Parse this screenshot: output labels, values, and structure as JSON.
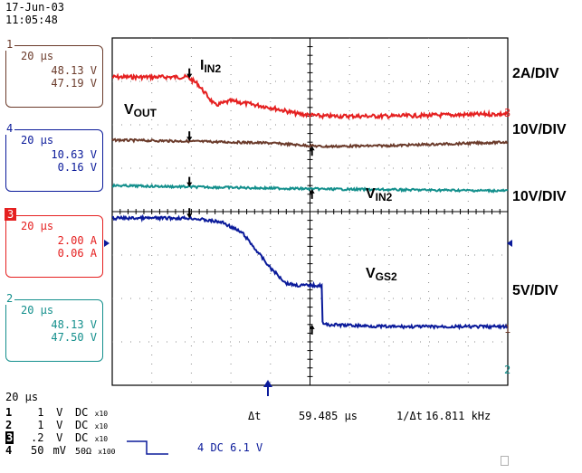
{
  "header": {
    "date": "17-Jun-03",
    "time": "11:05:48"
  },
  "colors": {
    "ch1": "#6b3b2b",
    "ch4": "#0a1a9a",
    "ch3": "#e52020",
    "ch2": "#138f8c",
    "grid": "#000000"
  },
  "channels": [
    {
      "id": "ch1",
      "number": "1",
      "time_div": "20 μs",
      "max": "48.13 V",
      "min": "47.19 V"
    },
    {
      "id": "ch4",
      "number": "4",
      "time_div": "20 μs",
      "max": "10.63 V",
      "min": "0.16 V"
    },
    {
      "id": "ch3",
      "number": "3",
      "time_div": "20 μs",
      "max": "2.00 A",
      "min": "0.06 A"
    },
    {
      "id": "ch2",
      "number": "2",
      "time_div": "20 μs",
      "max": "48.13 V",
      "min": "47.50 V"
    }
  ],
  "timebase": "20 μs",
  "settings": [
    {
      "ch": "1",
      "scale": "1",
      "unit": "V",
      "coupling": "DC",
      "probe": "x10"
    },
    {
      "ch": "2",
      "scale": "1",
      "unit": "V",
      "coupling": "DC",
      "probe": "x10"
    },
    {
      "ch": "3",
      "scale": ".2",
      "unit": "V",
      "coupling": "DC",
      "probe": "x10"
    },
    {
      "ch": "4",
      "scale": "50",
      "unit": "mV",
      "coupling": "50Ω",
      "probe": "x100"
    }
  ],
  "trigger": "4 DC 6.1 V",
  "measure": {
    "delta_label": "Δt",
    "delta_value": "59.485 μs",
    "freq_symbol": "1/Δt",
    "freq_value": "16.811 kHz"
  },
  "annotations": {
    "iin2": "I",
    "iin2_sub": "IN2",
    "vout": "V",
    "vout_sub": "OUT",
    "vin2": "V",
    "vin2_sub": "IN2",
    "vgs2": "V",
    "vgs2_sub": "GS2"
  },
  "divs": {
    "d1": "2A/DIV",
    "d2": "10V/DIV",
    "d3": "10V/DIV",
    "d4": "5V/DIV"
  },
  "chart_data": {
    "type": "line",
    "xlabel": "",
    "ylabel": "",
    "x_divisions": 10,
    "y_divisions": 8,
    "series": [
      {
        "x": [
          0,
          1.9,
          2.15,
          2.6,
          3,
          4,
          4.7,
          5.3,
          7,
          10
        ],
        "y": [
          7.1,
          7.1,
          6.95,
          6.45,
          6.55,
          6.4,
          6.25,
          6.2,
          6.2,
          6.25
        ]
      },
      {
        "x": [
          0,
          2,
          4,
          5.3,
          7,
          10
        ],
        "y": [
          5.65,
          5.62,
          5.58,
          5.5,
          5.52,
          5.6
        ]
      },
      {
        "x": [
          0,
          2,
          5.3,
          10
        ],
        "y": [
          4.6,
          4.57,
          4.52,
          4.48
        ]
      },
      {
        "x": [
          0,
          2,
          2.8,
          3.3,
          4,
          4.4,
          4.7,
          5.1,
          5.3,
          5.32,
          7,
          10
        ],
        "y": [
          3.85,
          3.85,
          3.75,
          3.5,
          2.7,
          2.35,
          2.3,
          2.3,
          2.3,
          1.4,
          1.35,
          1.35
        ]
      }
    ]
  }
}
